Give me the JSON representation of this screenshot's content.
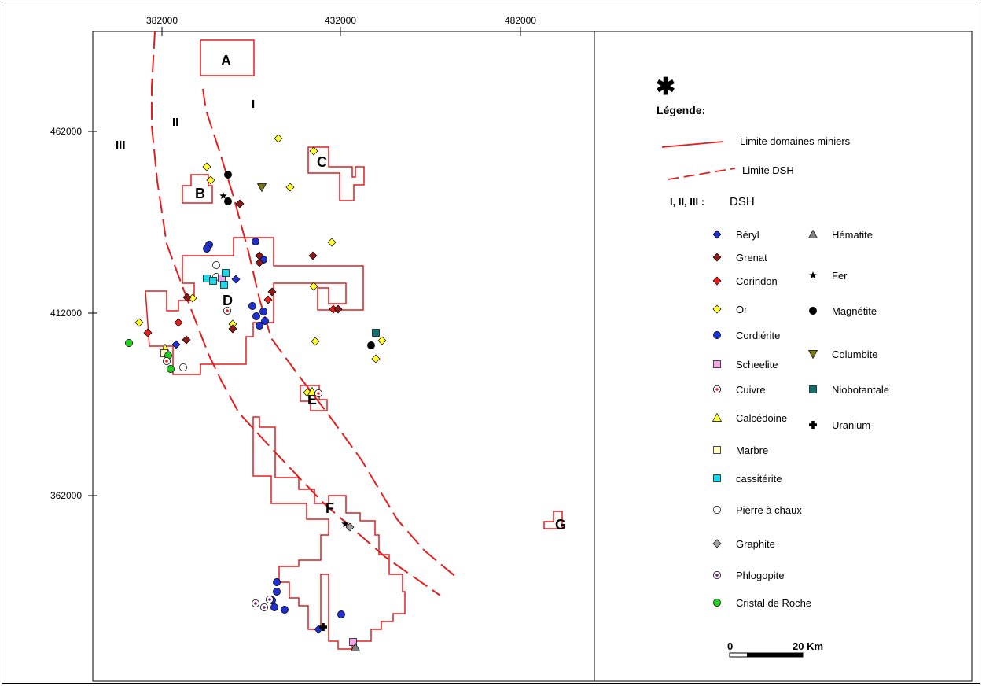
{
  "axes": {
    "x_ticks": [
      "382000",
      "432000",
      "482000"
    ],
    "y_ticks": [
      "462000",
      "412000",
      "362000"
    ]
  },
  "map_labels": {
    "zones": [
      "A",
      "B",
      "C",
      "D",
      "E",
      "F",
      "G"
    ],
    "dsh": [
      "I",
      "II",
      "III"
    ]
  },
  "legend": {
    "north_symbol": "✱",
    "title": "Légende:",
    "lines": [
      {
        "label": "Limite domaines miniers",
        "style": "solid",
        "color": "#e41e1e"
      },
      {
        "label": "Limite DSH",
        "style": "dashed",
        "color": "#e41e1e"
      }
    ],
    "dsh_key": "I, II, III :",
    "dsh_value": "DSH",
    "minerals_left": [
      {
        "label": "Béryl",
        "symbol": "diamond",
        "fill": "#1f2fd0"
      },
      {
        "label": "Grenat",
        "symbol": "diamond",
        "fill": "#8b1a1a"
      },
      {
        "label": "Corindon",
        "symbol": "diamond",
        "fill": "#e41e1e"
      },
      {
        "label": "Or",
        "symbol": "diamond",
        "fill": "#ffff33"
      },
      {
        "label": "Cordiérite",
        "symbol": "circle",
        "fill": "#1f2fd0"
      },
      {
        "label": "Scheelite",
        "symbol": "square",
        "fill": "#f0a6e8"
      },
      {
        "label": "Cuivre",
        "symbol": "ring",
        "fill": "#e41e1e"
      },
      {
        "label": "Calcédoine",
        "symbol": "triangle",
        "fill": "#ffff33"
      },
      {
        "label": "Marbre",
        "symbol": "square",
        "fill": "#fdfbc8"
      },
      {
        "label": "cassitérite",
        "symbol": "square",
        "fill": "#1fd6e6"
      },
      {
        "label": "Pierre à chaux",
        "symbol": "circle",
        "fill": "#ffffff"
      },
      {
        "label": "Graphite",
        "symbol": "diamond",
        "fill": "#a0a0a0"
      },
      {
        "label": "Phlogopite",
        "symbol": "ring",
        "fill": "#7a1f7a"
      },
      {
        "label": "Cristal de Roche",
        "symbol": "circle",
        "fill": "#22cc22"
      }
    ],
    "minerals_right": [
      {
        "label": "Hématite",
        "symbol": "triangle",
        "fill": "#808080"
      },
      {
        "label": "Fer",
        "symbol": "star",
        "fill": "#000000"
      },
      {
        "label": "Magnétite",
        "symbol": "circle",
        "fill": "#000000"
      },
      {
        "label": "Columbite",
        "symbol": "tridown",
        "fill": "#7a7a1a"
      },
      {
        "label": "Niobotantale",
        "symbol": "square",
        "fill": "#137070"
      },
      {
        "label": "Uranium",
        "symbol": "cross",
        "fill": "#000000"
      }
    ],
    "scale": {
      "zero": "0",
      "end": "20 Km"
    }
  }
}
